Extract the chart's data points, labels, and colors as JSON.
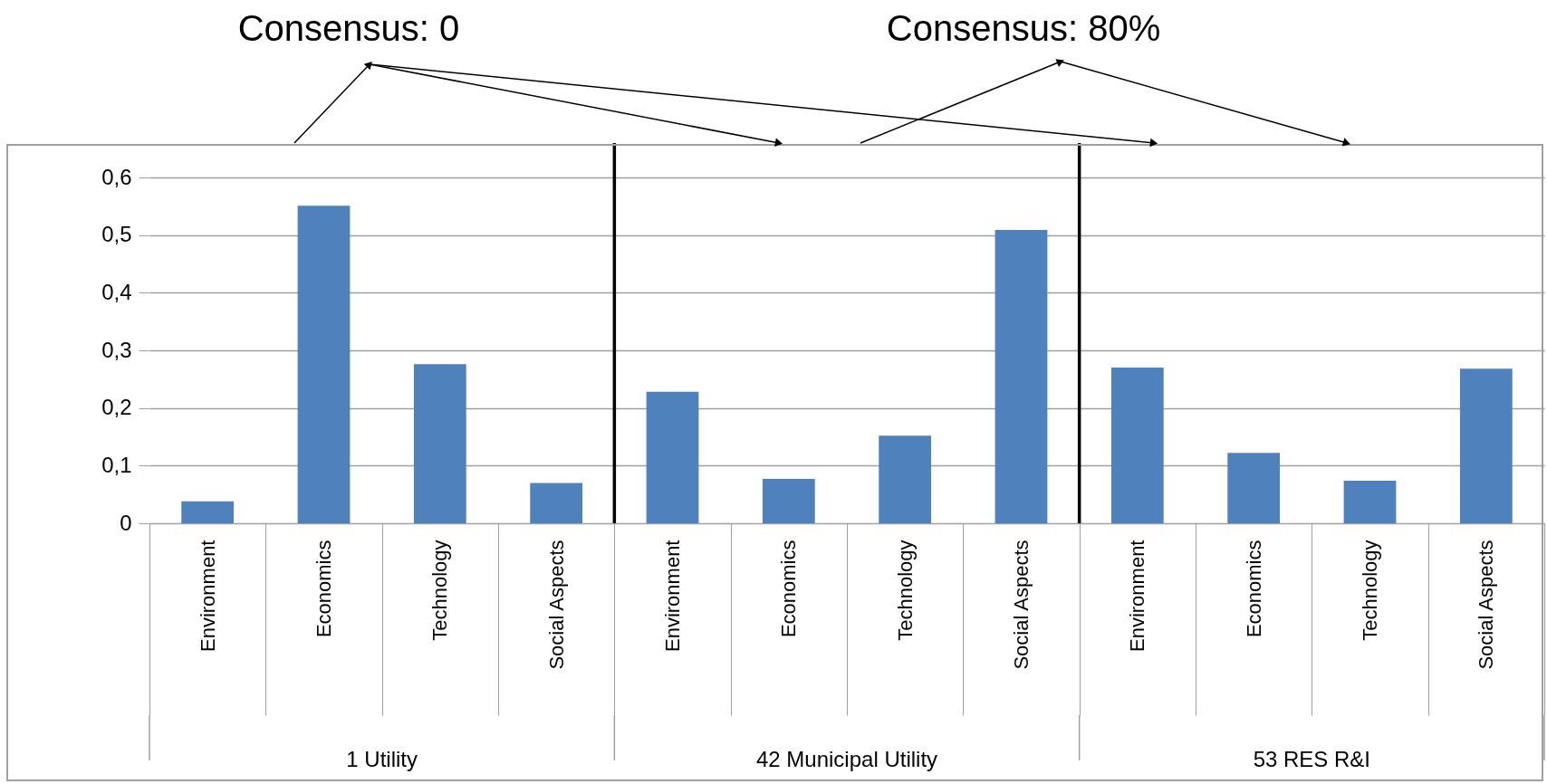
{
  "chart_data": {
    "type": "bar",
    "categories": [
      "Environment",
      "Economics",
      "Technology",
      "Social Aspects",
      "Environment",
      "Economics",
      "Technology",
      "Social Aspects",
      "Environment",
      "Economics",
      "Technology",
      "Social Aspects"
    ],
    "values": [
      0.038,
      0.551,
      0.276,
      0.07,
      0.228,
      0.077,
      0.152,
      0.509,
      0.27,
      0.122,
      0.074,
      0.268
    ],
    "color": "#4f81bd",
    "ylim": [
      0,
      0.6
    ],
    "yticks": [
      0,
      {
        "value": 0.1,
        "label": "0,1"
      },
      {
        "value": 0.2,
        "label": "0,2"
      },
      {
        "value": 0.3,
        "label": "0,3"
      },
      {
        "value": 0.4,
        "label": "0,4"
      },
      {
        "value": 0.5,
        "label": "0,5"
      },
      {
        "value": 0.6,
        "label": "0,6"
      }
    ],
    "grid": "y",
    "annotations": [
      "Consensus: 0",
      "Consensus: 80%",
      "1 Utility",
      "42 Municipal Utility",
      "53 RES R&I"
    ]
  }
}
